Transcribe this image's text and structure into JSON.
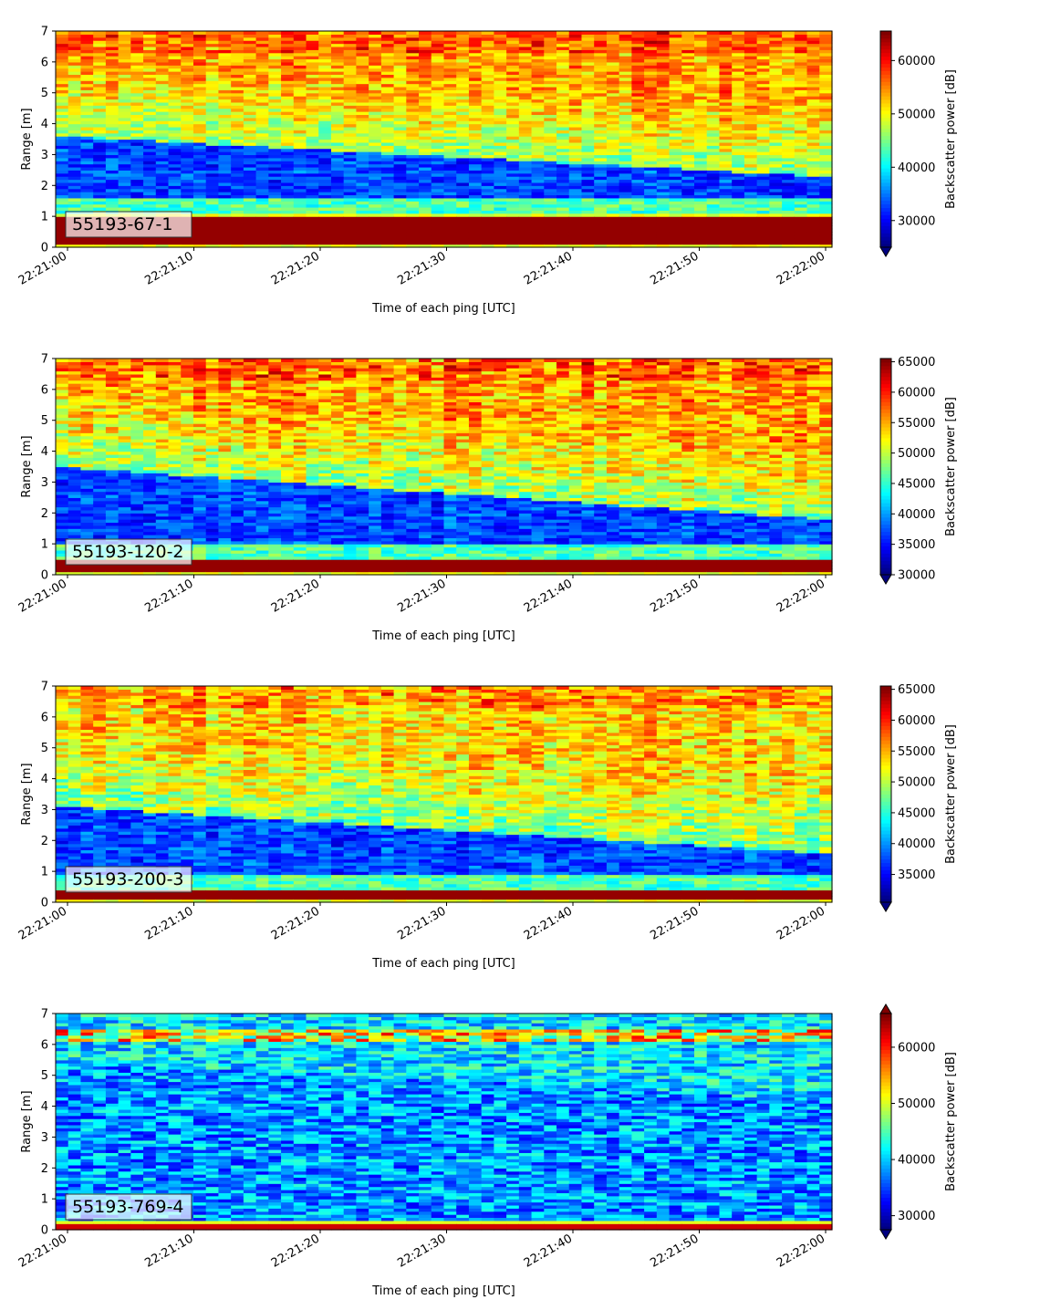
{
  "chart_data": [
    {
      "type": "heatmap",
      "panel_label": "55193-67-1",
      "xlabel": "Time of each ping [UTC]",
      "ylabel": "Range [m]",
      "x_tick_labels": [
        "22:21:00",
        "22:21:10",
        "22:21:20",
        "22:21:30",
        "22:21:40",
        "22:21:50",
        "22:22:00"
      ],
      "y_ticks": [
        0,
        1,
        2,
        3,
        4,
        5,
        6,
        7
      ],
      "ylim": [
        0,
        7
      ],
      "colorbar": {
        "label": "Backscatter power [dB]",
        "ticks": [
          30000,
          40000,
          50000,
          60000
        ],
        "range": [
          25000,
          65535
        ],
        "extend": "min",
        "colormap": "jet"
      },
      "profile": {
        "bottom_band_top_m": 1.1,
        "dark_layer_top_start_m": 3.6,
        "dark_layer_top_end_m": 2.3,
        "dark_layer_bottom_m": 1.6,
        "noise": 0.22,
        "mean_level": 0.72
      }
    },
    {
      "type": "heatmap",
      "panel_label": "55193-120-2",
      "xlabel": "Time of each ping [UTC]",
      "ylabel": "Range [m]",
      "x_tick_labels": [
        "22:21:00",
        "22:21:10",
        "22:21:20",
        "22:21:30",
        "22:21:40",
        "22:21:50",
        "22:22:00"
      ],
      "y_ticks": [
        0,
        1,
        2,
        3,
        4,
        5,
        6,
        7
      ],
      "ylim": [
        0,
        7
      ],
      "colorbar": {
        "label": "Backscatter power [dB]",
        "ticks": [
          30000,
          35000,
          40000,
          45000,
          50000,
          55000,
          60000,
          65000
        ],
        "range": [
          30000,
          65535
        ],
        "extend": "min",
        "colormap": "jet"
      },
      "profile": {
        "bottom_band_top_m": 0.55,
        "dark_layer_top_start_m": 3.5,
        "dark_layer_top_end_m": 1.8,
        "dark_layer_bottom_m": 1.0,
        "noise": 0.25,
        "mean_level": 0.72
      }
    },
    {
      "type": "heatmap",
      "panel_label": "55193-200-3",
      "xlabel": "Time of each ping [UTC]",
      "ylabel": "Range [m]",
      "x_tick_labels": [
        "22:21:00",
        "22:21:10",
        "22:21:20",
        "22:21:30",
        "22:21:40",
        "22:21:50",
        "22:22:00"
      ],
      "y_ticks": [
        0,
        1,
        2,
        3,
        4,
        5,
        6,
        7
      ],
      "ylim": [
        0,
        7
      ],
      "colorbar": {
        "label": "Backscatter power [dB]",
        "ticks": [
          35000,
          40000,
          45000,
          50000,
          55000,
          60000,
          65000
        ],
        "range": [
          30500,
          65535
        ],
        "extend": "min",
        "colormap": "jet"
      },
      "profile": {
        "bottom_band_top_m": 0.45,
        "dark_layer_top_start_m": 3.1,
        "dark_layer_top_end_m": 1.6,
        "dark_layer_bottom_m": 0.9,
        "noise": 0.25,
        "mean_level": 0.66
      }
    },
    {
      "type": "heatmap",
      "panel_label": "55193-769-4",
      "xlabel": "Time of each ping [UTC]",
      "ylabel": "Range [m]",
      "x_tick_labels": [
        "22:21:00",
        "22:21:10",
        "22:21:20",
        "22:21:30",
        "22:21:40",
        "22:21:50",
        "22:22:00"
      ],
      "y_ticks": [
        0,
        1,
        2,
        3,
        4,
        5,
        6,
        7
      ],
      "ylim": [
        0,
        7
      ],
      "colorbar": {
        "label": "Backscatter power [dB]",
        "ticks": [
          30000,
          40000,
          50000,
          60000
        ],
        "range": [
          27500,
          66000
        ],
        "extend": "both",
        "colormap": "jet"
      },
      "profile": {
        "bottom_band_top_m": 0.35,
        "dark_layer_top_start_m": 5.5,
        "dark_layer_top_end_m": 4.2,
        "dark_layer_bottom_m": 0.6,
        "noise": 0.22,
        "mean_level": 0.3
      }
    }
  ]
}
